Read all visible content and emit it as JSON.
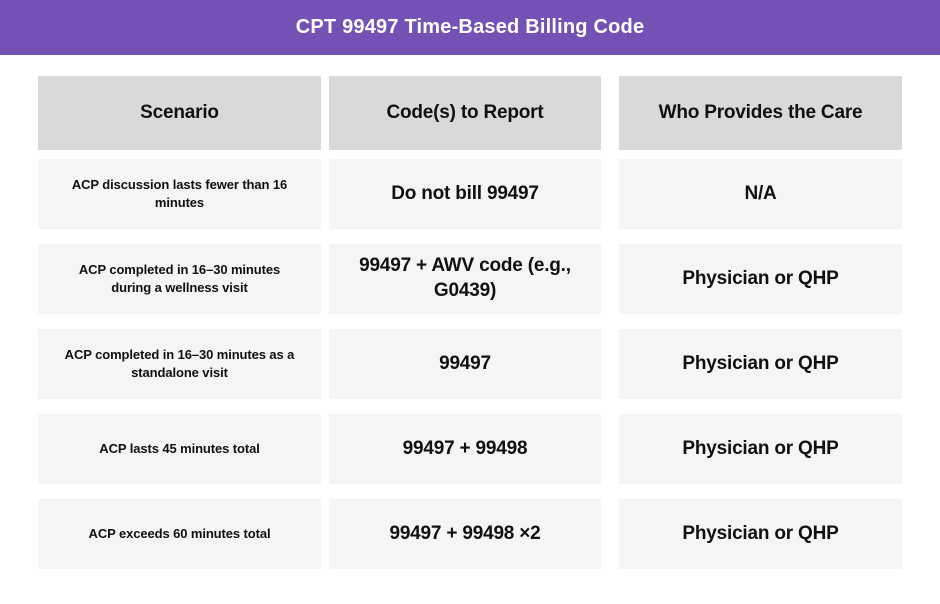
{
  "chart_data": {
    "type": "table",
    "title": "CPT 99497 Time-Based Billing Code",
    "columns": [
      "Scenario",
      "Code(s) to Report",
      "Who Provides the Care"
    ],
    "rows": [
      [
        "ACP discussion lasts fewer than 16 minutes",
        "Do not bill 99497",
        "N/A"
      ],
      [
        "ACP completed in 16–30 minutes during a wellness visit",
        "99497 + AWV code (e.g., G0439)",
        "Physician or QHP"
      ],
      [
        "ACP completed in 16–30 minutes as a standalone visit",
        "99497",
        "Physician or QHP"
      ],
      [
        "ACP lasts 45 minutes total",
        "99497 + 99498",
        "Physician or QHP"
      ],
      [
        "ACP exceeds 60 minutes total",
        "99497 + 99498 ×2",
        "Physician or QHP"
      ]
    ],
    "legend": "none",
    "grid": "off"
  },
  "colors": {
    "banner_bg": "#7351B5",
    "banner_text": "#FFFFFF",
    "header_cell_bg": "#D9D9D9",
    "row_cell_bg": "#F5F5F5",
    "text": "#101010",
    "page_bg": "#FFFFFF"
  }
}
